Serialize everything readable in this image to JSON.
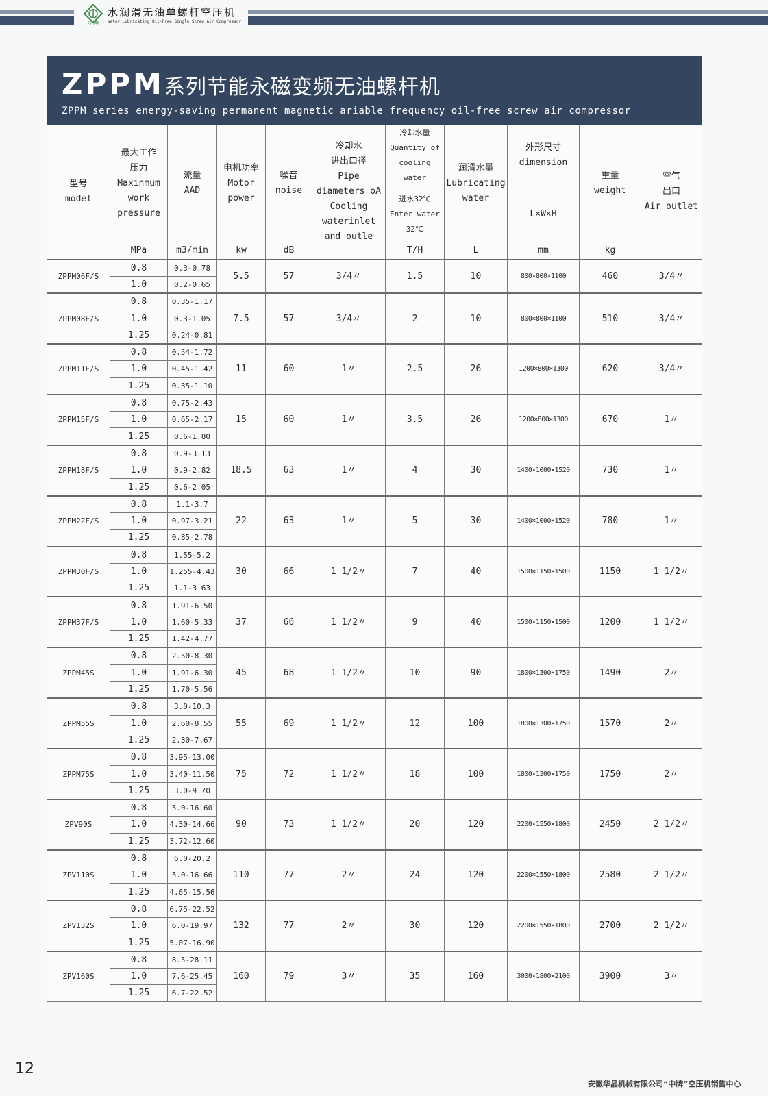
{
  "header": {
    "title_cn": "水润滑无油单螺杆空压机",
    "title_en": "Water Lubricating Oil-Free Single Screw Air Compressor",
    "logo_text": "中牌",
    "colors": {
      "band": "#34455f",
      "stripe_dark": "#3d4f6b",
      "stripe_light": "#8896a8",
      "logo": "#3a8a4a"
    }
  },
  "banner": {
    "title_prefix": "ZPPM",
    "title_cn": "系列节能永磁变频无油螺杆机",
    "subtitle_en": "ZPPM series energy-saving permanent magnetic ariable frequency oil-free screw air compressor"
  },
  "table": {
    "headers": {
      "model": [
        "型号",
        "model"
      ],
      "pressure": [
        "最大工作",
        "压力",
        "Maxinmum",
        "work",
        "pressure"
      ],
      "flow": [
        "流量",
        "AAD"
      ],
      "power": [
        "电机功率",
        "Motor",
        "power"
      ],
      "noise": [
        "噪音",
        "noise"
      ],
      "pipe": [
        "冷却水",
        "进出口径",
        "Pipe",
        "diameters oA",
        "Cooling",
        "waterinlet",
        "and outle"
      ],
      "cooling_qty": [
        "冷却水量",
        "Quantity of",
        "cooling water"
      ],
      "cooling_temp": [
        "进水32℃",
        "Enter water",
        "32℃"
      ],
      "lube": [
        "润滑水量",
        "Lubricating",
        "water"
      ],
      "dimension": [
        "外形尺寸",
        "dimension"
      ],
      "dimension_sub": "L×W×H",
      "weight": [
        "重量",
        "weight"
      ],
      "air_outlet": [
        "空气",
        "出口",
        "Air outlet"
      ]
    },
    "units": {
      "pressure": "MPa",
      "flow": "m3/min",
      "power": "kw",
      "noise": "dB",
      "cooling_qty": "T/H",
      "lube": "L",
      "dimension": "mm",
      "weight": "kg"
    },
    "rows": [
      {
        "model": "ZPPM06F/S",
        "sub": [
          [
            "0.8",
            "0.3-0.78"
          ],
          [
            "1.0",
            "0.2-0.65"
          ]
        ],
        "power": "5.5",
        "noise": "57",
        "pipe": "3/4〃",
        "cooling": "1.5",
        "lube": "10",
        "dimension": "800×800×1100",
        "weight": "460",
        "outlet": "3/4〃"
      },
      {
        "model": "ZPPM08F/S",
        "sub": [
          [
            "0.8",
            "0.35-1.17"
          ],
          [
            "1.0",
            "0.3-1.05"
          ],
          [
            "1.25",
            "0.24-0.81"
          ]
        ],
        "power": "7.5",
        "noise": "57",
        "pipe": "3/4〃",
        "cooling": "2",
        "lube": "10",
        "dimension": "800×800×1100",
        "weight": "510",
        "outlet": "3/4〃"
      },
      {
        "model": "ZPPM11F/S",
        "sub": [
          [
            "0.8",
            "0.54-1.72"
          ],
          [
            "1.0",
            "0.45-1.42"
          ],
          [
            "1.25",
            "0.35-1.10"
          ]
        ],
        "power": "11",
        "noise": "60",
        "pipe": "1〃",
        "cooling": "2.5",
        "lube": "26",
        "dimension": "1200×800×1300",
        "weight": "620",
        "outlet": "3/4〃"
      },
      {
        "model": "ZPPM15F/S",
        "sub": [
          [
            "0.8",
            "0.75-2.43"
          ],
          [
            "1.0",
            "0.65-2.17"
          ],
          [
            "1.25",
            "0.6-1.80"
          ]
        ],
        "power": "15",
        "noise": "60",
        "pipe": "1〃",
        "cooling": "3.5",
        "lube": "26",
        "dimension": "1200×800×1300",
        "weight": "670",
        "outlet": "1〃"
      },
      {
        "model": "ZPPM18F/S",
        "sub": [
          [
            "0.8",
            "0.9-3.13"
          ],
          [
            "1.0",
            "0.9-2.82"
          ],
          [
            "1.25",
            "0.6-2.05"
          ]
        ],
        "power": "18.5",
        "noise": "63",
        "pipe": "1〃",
        "cooling": "4",
        "lube": "30",
        "dimension": "1400×1000×1520",
        "weight": "730",
        "outlet": "1〃"
      },
      {
        "model": "ZPPM22F/S",
        "sub": [
          [
            "0.8",
            "1.1-3.7"
          ],
          [
            "1.0",
            "0.97-3.21"
          ],
          [
            "1.25",
            "0.85-2.78"
          ]
        ],
        "power": "22",
        "noise": "63",
        "pipe": "1〃",
        "cooling": "5",
        "lube": "30",
        "dimension": "1400×1000×1520",
        "weight": "780",
        "outlet": "1〃"
      },
      {
        "model": "ZPPM30F/S",
        "sub": [
          [
            "0.8",
            "1.55-5.2"
          ],
          [
            "1.0",
            "1.255-4.43"
          ],
          [
            "1.25",
            "1.1-3.63"
          ]
        ],
        "power": "30",
        "noise": "66",
        "pipe": "1 1/2〃",
        "cooling": "7",
        "lube": "40",
        "dimension": "1500×1150×1500",
        "weight": "1150",
        "outlet": "1 1/2〃"
      },
      {
        "model": "ZPPM37F/S",
        "sub": [
          [
            "0.8",
            "1.91-6.50"
          ],
          [
            "1.0",
            "1.60-5.33"
          ],
          [
            "1.25",
            "1.42-4.77"
          ]
        ],
        "power": "37",
        "noise": "66",
        "pipe": "1 1/2〃",
        "cooling": "9",
        "lube": "40",
        "dimension": "1500×1150×1500",
        "weight": "1200",
        "outlet": "1 1/2〃"
      },
      {
        "model": "ZPPM45S",
        "sub": [
          [
            "0.8",
            "2.50-8.30"
          ],
          [
            "1.0",
            "1.91-6.30"
          ],
          [
            "1.25",
            "1.70-5.56"
          ]
        ],
        "power": "45",
        "noise": "68",
        "pipe": "1 1/2〃",
        "cooling": "10",
        "lube": "90",
        "dimension": "1800×1300×1750",
        "weight": "1490",
        "outlet": "2〃"
      },
      {
        "model": "ZPPM55S",
        "sub": [
          [
            "0.8",
            "3.0-10.3"
          ],
          [
            "1.0",
            "2.60-8.55"
          ],
          [
            "1.25",
            "2.30-7.67"
          ]
        ],
        "power": "55",
        "noise": "69",
        "pipe": "1 1/2〃",
        "cooling": "12",
        "lube": "100",
        "dimension": "1800×1300×1750",
        "weight": "1570",
        "outlet": "2〃"
      },
      {
        "model": "ZPPM75S",
        "sub": [
          [
            "0.8",
            "3.95-13.00"
          ],
          [
            "1.0",
            "3.40-11.50"
          ],
          [
            "1.25",
            "3.0-9.70"
          ]
        ],
        "power": "75",
        "noise": "72",
        "pipe": "1 1/2〃",
        "cooling": "18",
        "lube": "100",
        "dimension": "1800×1300×1750",
        "weight": "1750",
        "outlet": "2〃"
      },
      {
        "model": "ZPV90S",
        "sub": [
          [
            "0.8",
            "5.0-16.60"
          ],
          [
            "1.0",
            "4.30-14.66"
          ],
          [
            "1.25",
            "3.72-12.60"
          ]
        ],
        "power": "90",
        "noise": "73",
        "pipe": "1 1/2〃",
        "cooling": "20",
        "lube": "120",
        "dimension": "2200×1550×1800",
        "weight": "2450",
        "outlet": "2 1/2〃"
      },
      {
        "model": "ZPV110S",
        "sub": [
          [
            "0.8",
            "6.0-20.2"
          ],
          [
            "1.0",
            "5.0-16.66"
          ],
          [
            "1.25",
            "4.65-15.56"
          ]
        ],
        "power": "110",
        "noise": "77",
        "pipe": "2〃",
        "cooling": "24",
        "lube": "120",
        "dimension": "2200×1550×1800",
        "weight": "2580",
        "outlet": "2 1/2〃"
      },
      {
        "model": "ZPV132S",
        "sub": [
          [
            "0.8",
            "6.75-22.52"
          ],
          [
            "1.0",
            "6.0-19.97"
          ],
          [
            "1.25",
            "5.07-16.90"
          ]
        ],
        "power": "132",
        "noise": "77",
        "pipe": "2〃",
        "cooling": "30",
        "lube": "120",
        "dimension": "2200×1550×1800",
        "weight": "2700",
        "outlet": "2 1/2〃"
      },
      {
        "model": "ZPV160S",
        "sub": [
          [
            "0.8",
            "8.5-28.11"
          ],
          [
            "1.0",
            "7.6-25.45"
          ],
          [
            "1.25",
            "6.7-22.52"
          ]
        ],
        "power": "160",
        "noise": "79",
        "pipe": "3〃",
        "cooling": "35",
        "lube": "160",
        "dimension": "3000×1800×2100",
        "weight": "3900",
        "outlet": "3〃"
      }
    ]
  },
  "footer": {
    "page_number": "12",
    "company": "安徽华晶机械有限公司“中牌”空压机销售中心"
  }
}
